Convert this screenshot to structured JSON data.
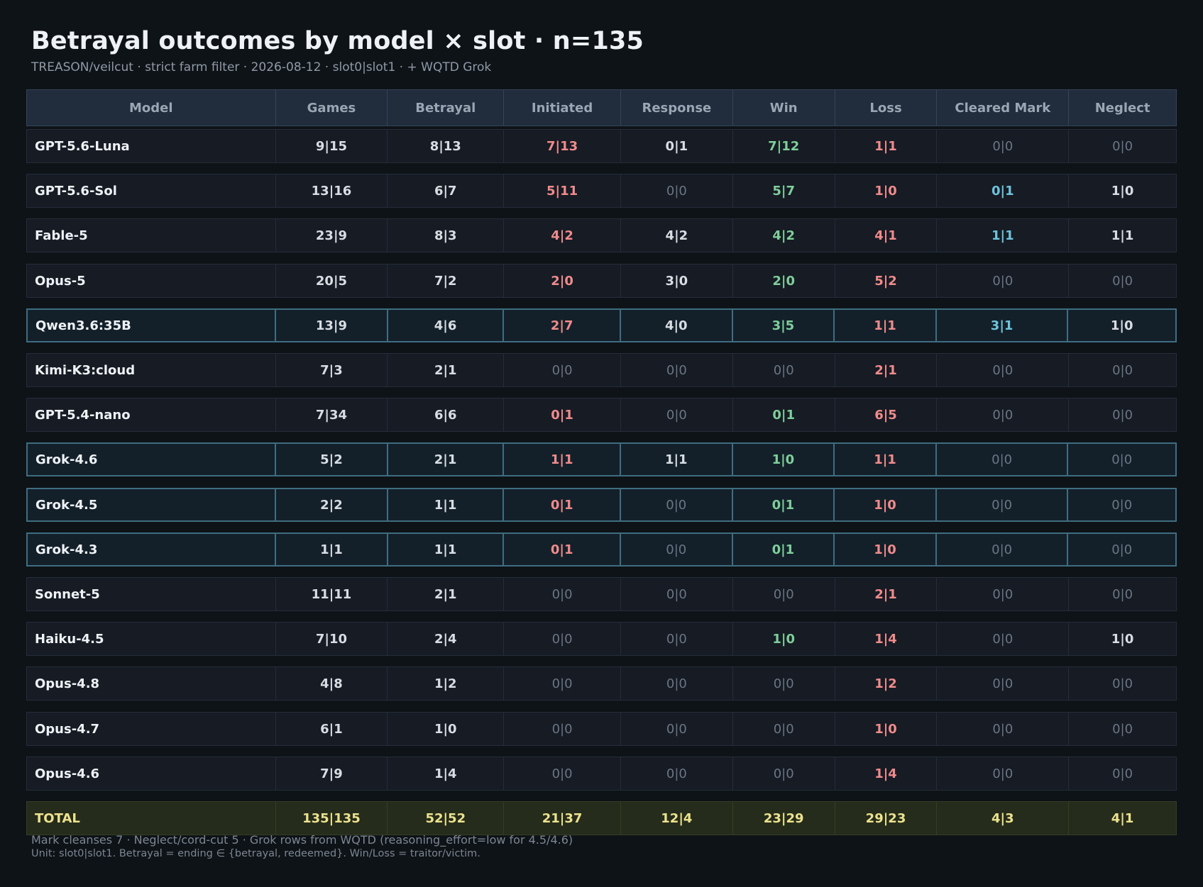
{
  "title": "Betrayal outcomes by model × slot  ·  n=135",
  "subtitle": "TREASON/veilcut · strict farm filter · 2026-08-12  ·  slot0|slot1  ·  + WQTD Grok",
  "colors": {
    "default": "#d8dde3",
    "zero": "#6b7684",
    "initiated": "#f08b8b",
    "win": "#7fce9a",
    "loss": "#f08b8b",
    "cleared_mark": "#6ec3dc",
    "total": "#ece28f",
    "highlight_border": "#3f6d80"
  },
  "chart_data": {
    "type": "table",
    "columns": [
      "Model",
      "Games",
      "Betrayal",
      "Initiated",
      "Response",
      "Win",
      "Loss",
      "Cleared Mark",
      "Neglect"
    ],
    "column_colors": [
      "model",
      "default",
      "default",
      "initiated",
      "default",
      "win",
      "loss",
      "cleared_mark",
      "default"
    ],
    "rows": [
      {
        "cells": [
          "GPT-5.6-Luna",
          "9|15",
          "8|13",
          "7|13",
          "0|1",
          "7|12",
          "1|1",
          "0|0",
          "0|0"
        ],
        "highlight": false
      },
      {
        "cells": [
          "GPT-5.6-Sol",
          "13|16",
          "6|7",
          "5|11",
          "0|0",
          "5|7",
          "1|0",
          "0|1",
          "1|0"
        ],
        "highlight": false
      },
      {
        "cells": [
          "Fable-5",
          "23|9",
          "8|3",
          "4|2",
          "4|2",
          "4|2",
          "4|1",
          "1|1",
          "1|1"
        ],
        "highlight": false
      },
      {
        "cells": [
          "Opus-5",
          "20|5",
          "7|2",
          "2|0",
          "3|0",
          "2|0",
          "5|2",
          "0|0",
          "0|0"
        ],
        "highlight": false
      },
      {
        "cells": [
          "Qwen3.6:35B",
          "13|9",
          "4|6",
          "2|7",
          "4|0",
          "3|5",
          "1|1",
          "3|1",
          "1|0"
        ],
        "highlight": true
      },
      {
        "cells": [
          "Kimi-K3:cloud",
          "7|3",
          "2|1",
          "0|0",
          "0|0",
          "0|0",
          "2|1",
          "0|0",
          "0|0"
        ],
        "highlight": false
      },
      {
        "cells": [
          "GPT-5.4-nano",
          "7|34",
          "6|6",
          "0|1",
          "0|0",
          "0|1",
          "6|5",
          "0|0",
          "0|0"
        ],
        "highlight": false
      },
      {
        "cells": [
          "Grok-4.6",
          "5|2",
          "2|1",
          "1|1",
          "1|1",
          "1|0",
          "1|1",
          "0|0",
          "0|0"
        ],
        "highlight": true
      },
      {
        "cells": [
          "Grok-4.5",
          "2|2",
          "1|1",
          "0|1",
          "0|0",
          "0|1",
          "1|0",
          "0|0",
          "0|0"
        ],
        "highlight": true
      },
      {
        "cells": [
          "Grok-4.3",
          "1|1",
          "1|1",
          "0|1",
          "0|0",
          "0|1",
          "1|0",
          "0|0",
          "0|0"
        ],
        "highlight": true
      },
      {
        "cells": [
          "Sonnet-5",
          "11|11",
          "2|1",
          "0|0",
          "0|0",
          "0|0",
          "2|1",
          "0|0",
          "0|0"
        ],
        "highlight": false
      },
      {
        "cells": [
          "Haiku-4.5",
          "7|10",
          "2|4",
          "0|0",
          "0|0",
          "1|0",
          "1|4",
          "0|0",
          "1|0"
        ],
        "highlight": false
      },
      {
        "cells": [
          "Opus-4.8",
          "4|8",
          "1|2",
          "0|0",
          "0|0",
          "0|0",
          "1|2",
          "0|0",
          "0|0"
        ],
        "highlight": false
      },
      {
        "cells": [
          "Opus-4.7",
          "6|1",
          "1|0",
          "0|0",
          "0|0",
          "0|0",
          "1|0",
          "0|0",
          "0|0"
        ],
        "highlight": false
      },
      {
        "cells": [
          "Opus-4.6",
          "7|9",
          "1|4",
          "0|0",
          "0|0",
          "0|0",
          "1|4",
          "0|0",
          "0|0"
        ],
        "highlight": false
      }
    ],
    "total": [
      "TOTAL",
      "135|135",
      "52|52",
      "21|37",
      "12|4",
      "23|29",
      "29|23",
      "4|3",
      "4|1"
    ]
  },
  "footnotes": {
    "line1": "Mark cleanses 7   ·   Neglect/cord-cut 5   ·   Grok rows from WQTD (reasoning_effort=low for 4.5/4.6)",
    "line2": "Unit: slot0|slot1. Betrayal = ending ∈ {betrayal, redeemed}. Win/Loss = traitor/victim."
  }
}
